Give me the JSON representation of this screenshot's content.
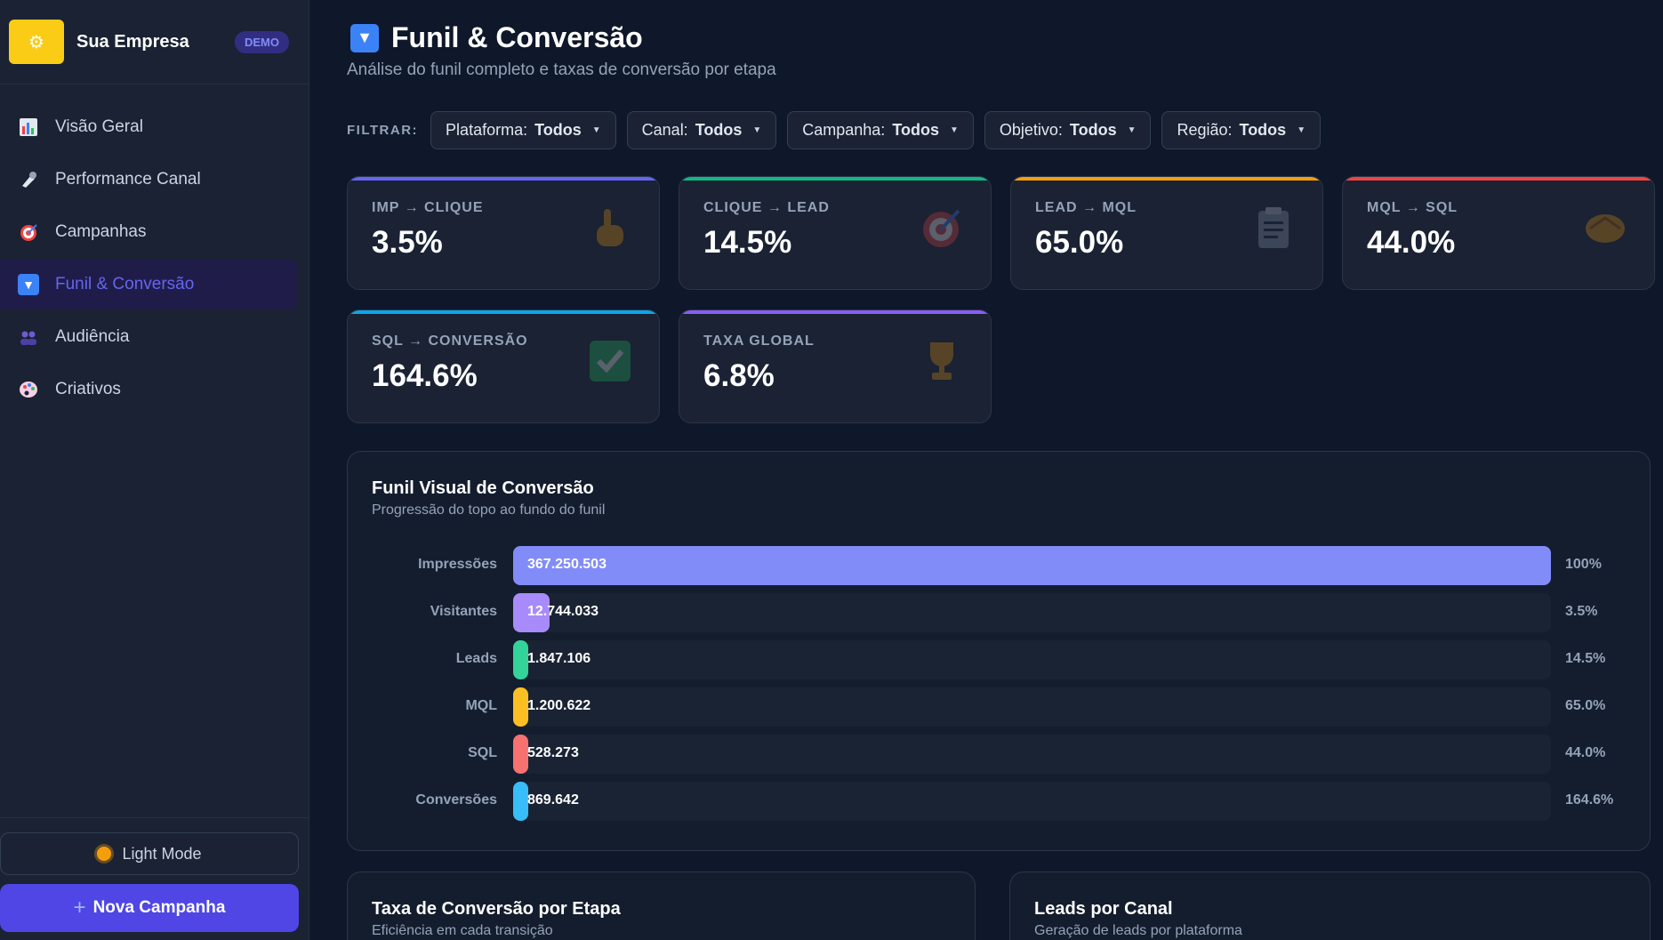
{
  "brand": {
    "name": "Sua Empresa",
    "badge": "DEMO"
  },
  "sidebar": {
    "items": [
      {
        "label": "Visão Geral",
        "icon": "bar-chart-icon"
      },
      {
        "label": "Performance Canal",
        "icon": "microphone-icon"
      },
      {
        "label": "Campanhas",
        "icon": "target-icon"
      },
      {
        "label": "Funil & Conversão",
        "icon": "funnel-icon",
        "active": true
      },
      {
        "label": "Audiência",
        "icon": "people-icon"
      },
      {
        "label": "Criativos",
        "icon": "palette-icon"
      }
    ],
    "light_mode": "Light Mode",
    "new_campaign": "Nova Campanha"
  },
  "header": {
    "title": "Funil & Conversão",
    "subtitle": "Análise do funil completo e taxas de conversão por etapa"
  },
  "filters": {
    "label": "FILTRAR:",
    "items": [
      {
        "name": "Plataforma:",
        "value": "Todos"
      },
      {
        "name": "Canal:",
        "value": "Todos"
      },
      {
        "name": "Campanha:",
        "value": "Todos"
      },
      {
        "name": "Objetivo:",
        "value": "Todos"
      },
      {
        "name": "Região:",
        "value": "Todos"
      }
    ]
  },
  "kpis": [
    {
      "label": "IMP → CLIQUE",
      "value": "3.5%",
      "accent": "#6366f1",
      "icon": "pointing-hand-icon"
    },
    {
      "label": "CLIQUE → LEAD",
      "value": "14.5%",
      "accent": "#10b981",
      "icon": "target-icon"
    },
    {
      "label": "LEAD → MQL",
      "value": "65.0%",
      "accent": "#f59e0b",
      "icon": "clipboard-icon"
    },
    {
      "label": "MQL → SQL",
      "value": "44.0%",
      "accent": "#ef4444",
      "icon": "handshake-icon"
    },
    {
      "label": "SQL → CONVERSÃO",
      "value": "164.6%",
      "accent": "#0ea5e9",
      "icon": "checkbox-icon"
    },
    {
      "label": "TAXA GLOBAL",
      "value": "6.8%",
      "accent": "#8b5cf6",
      "icon": "trophy-icon"
    }
  ],
  "funnel": {
    "title": "Funil Visual de Conversão",
    "subtitle": "Progressão do topo ao fundo do funil",
    "stages": [
      {
        "label": "Impressões",
        "value": "367.250.503",
        "pct": "100%",
        "fill": 1.0,
        "color": "#818cf8"
      },
      {
        "label": "Visitantes",
        "value": "12.744.033",
        "pct": "3.5%",
        "fill": 0.035,
        "color": "#a78bfa"
      },
      {
        "label": "Leads",
        "value": "1.847.106",
        "pct": "14.5%",
        "fill": 0.005,
        "color": "#34d399"
      },
      {
        "label": "MQL",
        "value": "1.200.622",
        "pct": "65.0%",
        "fill": 0.0033,
        "color": "#fbbf24"
      },
      {
        "label": "SQL",
        "value": "528.273",
        "pct": "44.0%",
        "fill": 0.0014,
        "color": "#f87171"
      },
      {
        "label": "Conversões",
        "value": "869.642",
        "pct": "164.6%",
        "fill": 0.0024,
        "color": "#38bdf8"
      }
    ]
  },
  "panels": {
    "rate": {
      "title": "Taxa de Conversão por Etapa",
      "subtitle": "Eficiência em cada transição"
    },
    "leads": {
      "title": "Leads por Canal",
      "subtitle": "Geração de leads por plataforma"
    }
  }
}
